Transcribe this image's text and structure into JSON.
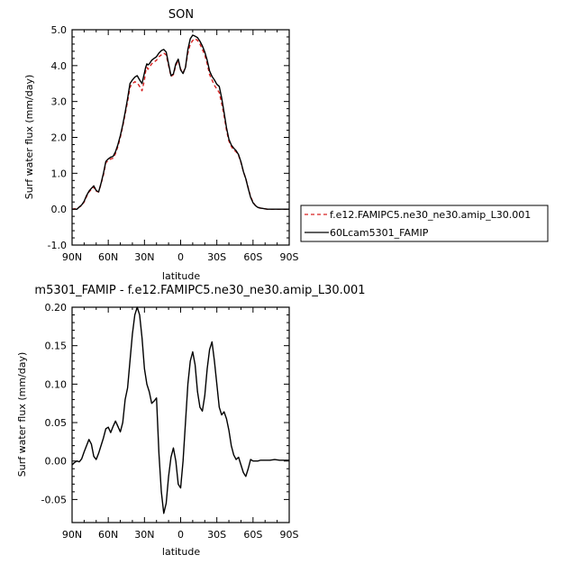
{
  "chart_data": [
    {
      "type": "line",
      "title": "SON",
      "xlabel": "latitude",
      "ylabel": "Surf water flux (mm/day)",
      "xlim": [
        90,
        -90
      ],
      "ylim": [
        -1.0,
        5.0
      ],
      "xticks": [
        90,
        60,
        30,
        0,
        -30,
        -60,
        -90
      ],
      "xticklabels": [
        "90N",
        "60N",
        "30N",
        "0",
        "30S",
        "60S",
        "90S"
      ],
      "yticks": [
        -1.0,
        0.0,
        1.0,
        2.0,
        3.0,
        4.0,
        5.0
      ],
      "yticklabels": [
        "-1.0",
        "0.0",
        "1.0",
        "2.0",
        "3.0",
        "4.0",
        "5.0"
      ],
      "grid": false,
      "legend": "right, outside plot",
      "series": [
        {
          "name": "f.e12.FAMIPC5.ne30_ne30.amip_L30.001",
          "color": "#d62020",
          "dash": "dashed",
          "x": [
            90,
            86,
            82,
            80,
            78,
            76,
            74,
            72,
            70,
            68,
            66,
            64,
            62,
            60,
            58,
            56,
            54,
            52,
            50,
            48,
            46,
            44,
            42,
            40,
            38,
            36,
            34,
            33,
            32,
            31,
            30,
            29,
            28,
            27,
            26,
            25,
            24,
            22,
            20,
            18,
            16,
            14,
            12,
            10,
            8,
            6,
            4,
            2,
            0,
            -2,
            -4,
            -6,
            -8,
            -10,
            -12,
            -14,
            -16,
            -18,
            -20,
            -22,
            -24,
            -26,
            -28,
            -30,
            -32,
            -34,
            -36,
            -38,
            -40,
            -42,
            -44,
            -46,
            -48,
            -50,
            -52,
            -54,
            -56,
            -58,
            -60,
            -62,
            -64,
            -66,
            -68,
            -70,
            -72,
            -74,
            -76,
            -78,
            -80,
            -84,
            -88,
            -90
          ],
          "y": [
            0.0,
            0.02,
            0.1,
            0.2,
            0.35,
            0.48,
            0.55,
            0.62,
            0.5,
            0.48,
            0.7,
            0.95,
            1.3,
            1.35,
            1.4,
            1.42,
            1.55,
            1.75,
            2.0,
            2.3,
            2.65,
            3.0,
            3.4,
            3.5,
            3.55,
            3.52,
            3.42,
            3.35,
            3.3,
            3.45,
            3.6,
            3.85,
            3.95,
            3.9,
            3.95,
            4.0,
            4.05,
            4.1,
            4.15,
            4.25,
            4.3,
            4.35,
            4.3,
            4.0,
            3.7,
            3.75,
            4.0,
            4.15,
            3.9,
            3.8,
            3.95,
            4.35,
            4.6,
            4.7,
            4.75,
            4.7,
            4.6,
            4.45,
            4.3,
            4.05,
            3.75,
            3.6,
            3.45,
            3.35,
            3.25,
            2.95,
            2.6,
            2.2,
            1.9,
            1.75,
            1.65,
            1.6,
            1.5,
            1.3,
            1.05,
            0.85,
            0.6,
            0.35,
            0.2,
            0.1,
            0.05,
            0.03,
            0.02,
            0.01,
            0.0,
            0.0,
            0.0,
            0.0,
            0.0,
            0.0,
            0.0,
            0.0
          ]
        },
        {
          "name": "60Lcam5301_FAMIP",
          "color": "#000000",
          "dash": "solid",
          "x": [
            90,
            86,
            82,
            80,
            78,
            76,
            74,
            72,
            70,
            68,
            66,
            64,
            62,
            60,
            58,
            56,
            54,
            52,
            50,
            48,
            46,
            44,
            42,
            40,
            38,
            36,
            34,
            33,
            32,
            31,
            30,
            29,
            28,
            27,
            26,
            25,
            24,
            22,
            20,
            18,
            16,
            14,
            12,
            10,
            8,
            6,
            4,
            2,
            0,
            -2,
            -4,
            -6,
            -8,
            -10,
            -12,
            -14,
            -16,
            -18,
            -20,
            -22,
            -24,
            -26,
            -28,
            -30,
            -32,
            -34,
            -36,
            -38,
            -40,
            -42,
            -44,
            -46,
            -48,
            -50,
            -52,
            -54,
            -56,
            -58,
            -60,
            -62,
            -64,
            -66,
            -68,
            -70,
            -72,
            -74,
            -76,
            -78,
            -80,
            -84,
            -88,
            -90
          ],
          "y": [
            0.0,
            0.0,
            0.12,
            0.22,
            0.38,
            0.5,
            0.58,
            0.65,
            0.52,
            0.48,
            0.72,
            1.0,
            1.33,
            1.4,
            1.45,
            1.47,
            1.6,
            1.8,
            2.05,
            2.35,
            2.7,
            3.08,
            3.5,
            3.6,
            3.68,
            3.72,
            3.6,
            3.55,
            3.5,
            3.65,
            3.8,
            3.95,
            4.05,
            4.02,
            4.05,
            4.1,
            4.15,
            4.2,
            4.25,
            4.35,
            4.42,
            4.45,
            4.38,
            4.05,
            3.72,
            3.77,
            4.05,
            4.18,
            3.88,
            3.78,
            3.95,
            4.45,
            4.75,
            4.85,
            4.82,
            4.78,
            4.68,
            4.55,
            4.38,
            4.15,
            3.85,
            3.7,
            3.6,
            3.48,
            3.42,
            3.1,
            2.7,
            2.27,
            1.95,
            1.79,
            1.7,
            1.63,
            1.52,
            1.32,
            1.05,
            0.85,
            0.58,
            0.33,
            0.18,
            0.1,
            0.05,
            0.03,
            0.02,
            0.01,
            0.0,
            0.0,
            0.0,
            0.0,
            0.0,
            0.0,
            0.0,
            0.0
          ]
        }
      ]
    },
    {
      "type": "line",
      "title": "m5301_FAMIP - f.e12.FAMIPC5.ne30_ne30.amip_L30.001",
      "xlabel": "latitude",
      "ylabel": "Surf water flux (mm/day)",
      "xlim": [
        90,
        -90
      ],
      "ylim": [
        -0.08,
        0.2
      ],
      "xticks": [
        90,
        60,
        30,
        0,
        -30,
        -60,
        -90
      ],
      "xticklabels": [
        "90N",
        "60N",
        "30N",
        "0",
        "30S",
        "60S",
        "90S"
      ],
      "yticks": [
        -0.05,
        0.0,
        0.05,
        0.1,
        0.15,
        0.2
      ],
      "yticklabels": [
        "-0.05",
        "0.00",
        "0.05",
        "0.10",
        "0.15",
        "0.20"
      ],
      "grid": false,
      "series": [
        {
          "color": "#000000",
          "dash": "solid",
          "x": [
            90,
            88,
            86,
            84,
            82,
            80,
            78,
            76,
            74,
            72,
            70,
            68,
            66,
            64,
            62,
            60,
            58,
            56,
            54,
            52,
            50,
            48,
            46,
            44,
            42,
            40,
            38,
            36,
            34,
            32,
            30,
            28,
            26,
            24,
            22,
            20,
            18,
            16,
            14,
            12,
            10,
            8,
            6,
            4,
            2,
            0,
            -2,
            -4,
            -6,
            -8,
            -10,
            -12,
            -14,
            -16,
            -18,
            -20,
            -22,
            -24,
            -26,
            -28,
            -30,
            -32,
            -34,
            -36,
            -38,
            -40,
            -42,
            -44,
            -46,
            -48,
            -50,
            -52,
            -54,
            -56,
            -58,
            -60,
            -62,
            -64,
            -66,
            -68,
            -70,
            -74,
            -78,
            -82,
            -86,
            -90
          ],
          "y": [
            -0.005,
            -0.002,
            0.0,
            -0.001,
            0.003,
            0.012,
            0.02,
            0.028,
            0.022,
            0.006,
            0.002,
            0.01,
            0.02,
            0.03,
            0.042,
            0.044,
            0.037,
            0.045,
            0.052,
            0.045,
            0.038,
            0.05,
            0.08,
            0.095,
            0.13,
            0.165,
            0.19,
            0.2,
            0.19,
            0.16,
            0.12,
            0.1,
            0.09,
            0.075,
            0.078,
            0.082,
            0.01,
            -0.04,
            -0.068,
            -0.055,
            -0.02,
            0.005,
            0.017,
            0.0,
            -0.03,
            -0.035,
            0.0,
            0.05,
            0.1,
            0.13,
            0.142,
            0.125,
            0.09,
            0.07,
            0.065,
            0.085,
            0.12,
            0.145,
            0.155,
            0.13,
            0.1,
            0.07,
            0.06,
            0.064,
            0.055,
            0.04,
            0.02,
            0.008,
            0.002,
            0.005,
            -0.005,
            -0.015,
            -0.02,
            -0.01,
            0.002,
            0.0,
            0.0,
            0.0,
            0.001,
            0.001,
            0.001,
            0.001,
            0.002,
            0.001,
            0.001,
            0.001
          ]
        }
      ]
    }
  ]
}
